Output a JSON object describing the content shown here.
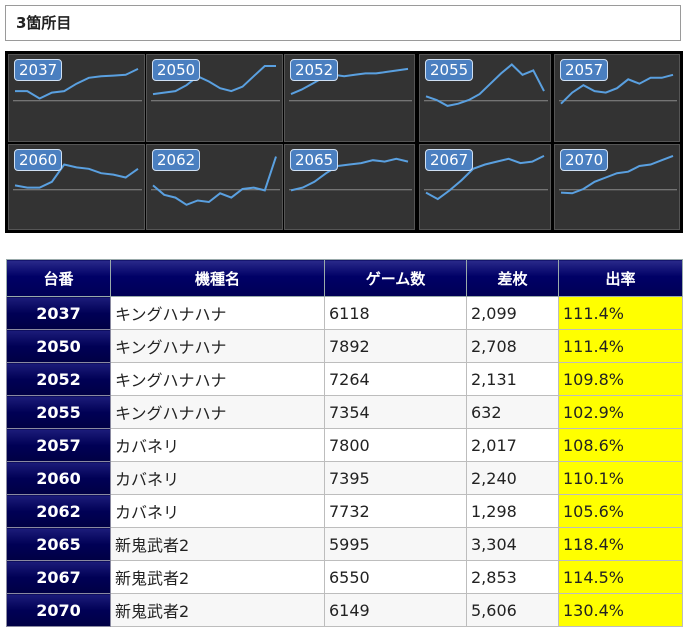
{
  "section": {
    "title": "3箇所目"
  },
  "machines": [
    {
      "id": "2037",
      "name": "キングハナハナ",
      "games": "6118",
      "diff": "2,099",
      "rate": "111.4%",
      "trend": [
        0.62,
        0.62,
        0.52,
        0.6,
        0.62,
        0.72,
        0.8,
        0.82,
        0.83,
        0.84,
        0.92
      ]
    },
    {
      "id": "2050",
      "name": "キングハナハナ",
      "games": "7892",
      "diff": "2,708",
      "rate": "111.4%",
      "trend": [
        0.58,
        0.6,
        0.62,
        0.7,
        0.82,
        0.75,
        0.66,
        0.62,
        0.68,
        0.82,
        0.96,
        0.96
      ]
    },
    {
      "id": "2052",
      "name": "キングハナハナ",
      "games": "7264",
      "diff": "2,131",
      "rate": "109.8%",
      "trend": [
        0.58,
        0.64,
        0.72,
        0.8,
        0.84,
        0.82,
        0.84,
        0.86,
        0.86,
        0.88,
        0.9,
        0.92
      ]
    },
    {
      "id": "2055",
      "name": "キングハナハナ",
      "games": "7354",
      "diff": "632",
      "rate": "102.9%",
      "trend": [
        0.55,
        0.5,
        0.42,
        0.45,
        0.5,
        0.58,
        0.72,
        0.86,
        0.98,
        0.84,
        0.9,
        0.62
      ]
    },
    {
      "id": "2057",
      "name": "カバネリ",
      "games": "7800",
      "diff": "2,017",
      "rate": "108.6%",
      "trend": [
        0.45,
        0.6,
        0.7,
        0.62,
        0.6,
        0.66,
        0.78,
        0.72,
        0.8,
        0.8,
        0.84
      ]
    },
    {
      "id": "2060",
      "name": "カバネリ",
      "games": "7395",
      "diff": "2,240",
      "rate": "110.1%",
      "trend": [
        0.55,
        0.52,
        0.52,
        0.6,
        0.84,
        0.8,
        0.78,
        0.72,
        0.7,
        0.66,
        0.78
      ]
    },
    {
      "id": "2062",
      "name": "カバネリ",
      "games": "7732",
      "diff": "1,298",
      "rate": "105.6%",
      "trend": [
        0.55,
        0.42,
        0.38,
        0.28,
        0.34,
        0.32,
        0.44,
        0.38,
        0.5,
        0.52,
        0.48,
        0.95
      ]
    },
    {
      "id": "2065",
      "name": "新鬼武者2",
      "games": "5995",
      "diff": "3,304",
      "rate": "118.4%",
      "trend": [
        0.48,
        0.52,
        0.6,
        0.72,
        0.82,
        0.84,
        0.86,
        0.9,
        0.88,
        0.92,
        0.88
      ]
    },
    {
      "id": "2067",
      "name": "新鬼武者2",
      "games": "6550",
      "diff": "2,853",
      "rate": "114.5%",
      "trend": [
        0.45,
        0.36,
        0.48,
        0.62,
        0.78,
        0.84,
        0.88,
        0.92,
        0.86,
        0.88,
        0.96
      ]
    },
    {
      "id": "2070",
      "name": "新鬼武者2",
      "games": "6149",
      "diff": "5,606",
      "rate": "130.4%",
      "trend": [
        0.45,
        0.44,
        0.5,
        0.6,
        0.66,
        0.72,
        0.74,
        0.82,
        0.84,
        0.9,
        0.96
      ]
    }
  ],
  "table": {
    "headers": [
      "台番",
      "機種名",
      "ゲーム数",
      "差枚",
      "出率"
    ]
  },
  "colors": {
    "header_navy": "#000066",
    "rate_bg": "#ffff00",
    "line": "#5aa0e0",
    "label_bg": "#4a7fc0"
  }
}
